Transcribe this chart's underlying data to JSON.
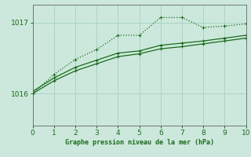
{
  "line_dotted_x": [
    0,
    1,
    2,
    3,
    4,
    5,
    6,
    7,
    8,
    9,
    10
  ],
  "line_dotted_y": [
    1016.0,
    1016.27,
    1016.48,
    1016.62,
    1016.82,
    1016.82,
    1017.07,
    1017.07,
    1016.93,
    1016.95,
    1016.98
  ],
  "line_solid1_x": [
    0,
    1,
    2,
    3,
    4,
    5,
    6,
    7,
    8,
    9,
    10
  ],
  "line_solid1_y": [
    1016.0,
    1016.18,
    1016.32,
    1016.42,
    1016.52,
    1016.56,
    1016.63,
    1016.66,
    1016.7,
    1016.74,
    1016.78
  ],
  "line_solid2_x": [
    0,
    1,
    2,
    3,
    4,
    5,
    6,
    7,
    8,
    9,
    10
  ],
  "line_solid2_y": [
    1016.03,
    1016.22,
    1016.37,
    1016.47,
    1016.57,
    1016.6,
    1016.68,
    1016.71,
    1016.74,
    1016.78,
    1016.82
  ],
  "color": "#1a6b1a",
  "bg_color": "#cce8dc",
  "xlabel": "Graphe pression niveau de la mer (hPa)",
  "yticks": [
    1016,
    1017
  ],
  "xticks": [
    0,
    1,
    2,
    3,
    4,
    5,
    6,
    7,
    8,
    9,
    10
  ],
  "ylim": [
    1015.55,
    1017.25
  ],
  "xlim": [
    0,
    10
  ],
  "grid_color": "#a8d4c4"
}
